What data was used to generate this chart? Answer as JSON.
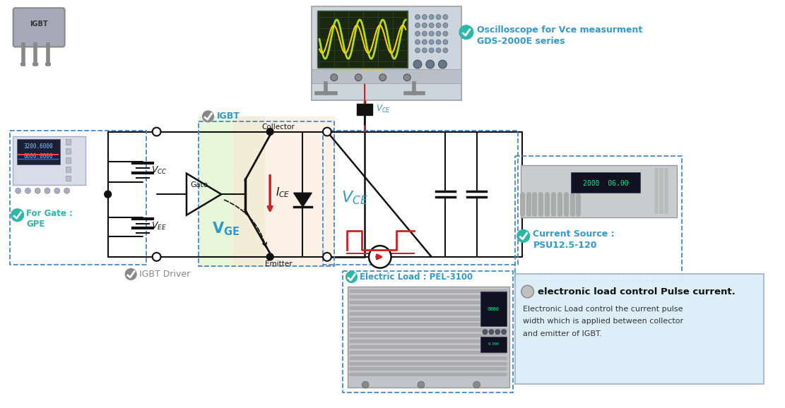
{
  "bg_color": "#ffffff",
  "teal_color": "#2ab8a8",
  "blue_label_color": "#3399cc",
  "gray_color": "#888888",
  "red_color": "#cc2222",
  "black_color": "#111111",
  "dashed_blue": "#4488cc",
  "osc_text1": "Oscilloscope for Vce measurment",
  "osc_text2": "GDS-2000E series",
  "gate_label": "For Gate :",
  "gate_label2": "GPE",
  "igbt_driver_label": "IGBT Driver",
  "igbt_label": "IGBT",
  "current_source_label1": "Current Source :",
  "current_source_label2": "PSU12.5-120",
  "electric_load_label": "Electric Load : PEL-3100",
  "pulse_title": "electronic load control Pulse current.",
  "pulse_desc1": "Electronic Load control the current pulse",
  "pulse_desc2": "width which is applied between collector",
  "pulse_desc3": "and emitter of IGBT."
}
